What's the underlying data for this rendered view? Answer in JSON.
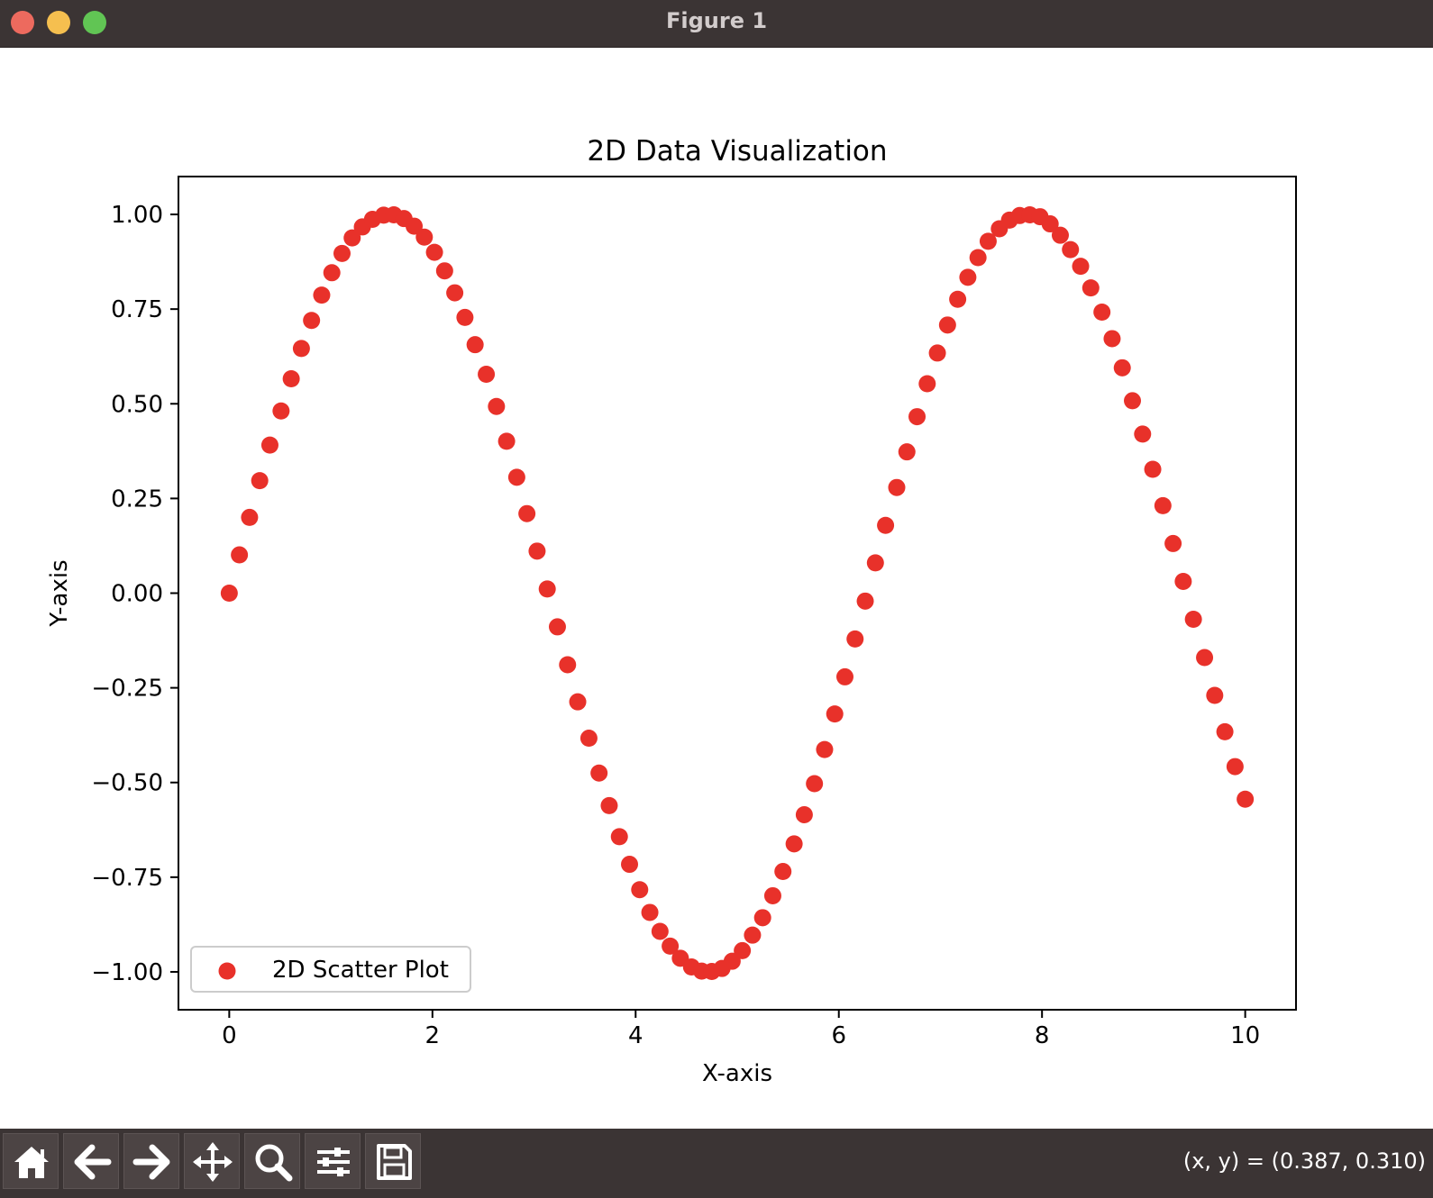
{
  "window": {
    "title": "Figure 1"
  },
  "toolbar": {
    "buttons": [
      {
        "name": "home-button",
        "icon": "home-icon"
      },
      {
        "name": "back-button",
        "icon": "arrow-left-icon"
      },
      {
        "name": "forward-button",
        "icon": "arrow-right-icon"
      },
      {
        "name": "pan-button",
        "icon": "move-icon"
      },
      {
        "name": "zoom-button",
        "icon": "magnifier-icon"
      },
      {
        "name": "configure-subplots-button",
        "icon": "sliders-icon"
      },
      {
        "name": "save-button",
        "icon": "floppy-disk-icon"
      }
    ],
    "coords": "(x, y) = (0.387, 0.310)"
  },
  "chart_data": {
    "type": "scatter",
    "title": "2D Data Visualization",
    "xlabel": "X-axis",
    "ylabel": "Y-axis",
    "xlim": [
      -0.5,
      10.5
    ],
    "ylim": [
      -1.1,
      1.1
    ],
    "xticks": [
      0,
      2,
      4,
      6,
      8,
      10
    ],
    "xtick_labels": [
      "0",
      "2",
      "4",
      "6",
      "8",
      "10"
    ],
    "yticks": [
      1.0,
      0.75,
      0.5,
      0.25,
      0.0,
      -0.25,
      -0.5,
      -0.75,
      -1.0
    ],
    "ytick_labels": [
      "1.00",
      "0.75",
      "0.50",
      "0.25",
      "0.00",
      "−0.25",
      "−0.50",
      "−0.75",
      "−1.00"
    ],
    "grid": false,
    "legend": {
      "position": "lower-left",
      "entries": [
        "2D Scatter Plot"
      ]
    },
    "series": [
      {
        "name": "2D Scatter Plot",
        "color": "#e8312a",
        "x": [
          0.0,
          0.1,
          0.2,
          0.3,
          0.4,
          0.51,
          0.61,
          0.71,
          0.81,
          0.91,
          1.01,
          1.11,
          1.21,
          1.31,
          1.41,
          1.52,
          1.62,
          1.72,
          1.82,
          1.92,
          2.02,
          2.12,
          2.22,
          2.32,
          2.42,
          2.53,
          2.63,
          2.73,
          2.83,
          2.93,
          3.03,
          3.13,
          3.23,
          3.33,
          3.43,
          3.54,
          3.64,
          3.74,
          3.84,
          3.94,
          4.04,
          4.14,
          4.24,
          4.34,
          4.44,
          4.55,
          4.65,
          4.75,
          4.85,
          4.95,
          5.05,
          5.15,
          5.25,
          5.35,
          5.45,
          5.56,
          5.66,
          5.76,
          5.86,
          5.96,
          6.06,
          6.16,
          6.26,
          6.36,
          6.46,
          6.57,
          6.67,
          6.77,
          6.87,
          6.97,
          7.07,
          7.17,
          7.27,
          7.37,
          7.47,
          7.58,
          7.68,
          7.78,
          7.88,
          7.98,
          8.08,
          8.18,
          8.28,
          8.38,
          8.48,
          8.59,
          8.69,
          8.79,
          8.89,
          8.99,
          9.09,
          9.19,
          9.29,
          9.39,
          9.49,
          9.6,
          9.7,
          9.8,
          9.9,
          10.0
        ],
        "y": [
          0.0,
          0.101,
          0.2,
          0.297,
          0.391,
          0.481,
          0.566,
          0.646,
          0.72,
          0.787,
          0.846,
          0.897,
          0.938,
          0.967,
          0.987,
          0.998,
          0.999,
          0.989,
          0.969,
          0.94,
          0.9,
          0.851,
          0.793,
          0.728,
          0.656,
          0.578,
          0.493,
          0.401,
          0.306,
          0.21,
          0.111,
          0.011,
          -0.089,
          -0.189,
          -0.287,
          -0.383,
          -0.475,
          -0.561,
          -0.643,
          -0.716,
          -0.783,
          -0.843,
          -0.893,
          -0.932,
          -0.964,
          -0.987,
          -0.998,
          -0.999,
          -0.991,
          -0.972,
          -0.944,
          -0.903,
          -0.857,
          -0.799,
          -0.735,
          -0.662,
          -0.585,
          -0.503,
          -0.413,
          -0.319,
          -0.221,
          -0.121,
          -0.021,
          0.08,
          0.179,
          0.279,
          0.373,
          0.466,
          0.553,
          0.634,
          0.708,
          0.776,
          0.834,
          0.886,
          0.929,
          0.962,
          0.985,
          0.997,
          0.999,
          0.994,
          0.975,
          0.945,
          0.907,
          0.863,
          0.806,
          0.742,
          0.672,
          0.595,
          0.508,
          0.42,
          0.327,
          0.231,
          0.131,
          0.031,
          -0.069,
          -0.17,
          -0.27,
          -0.366,
          -0.458,
          -0.544
        ]
      }
    ]
  }
}
